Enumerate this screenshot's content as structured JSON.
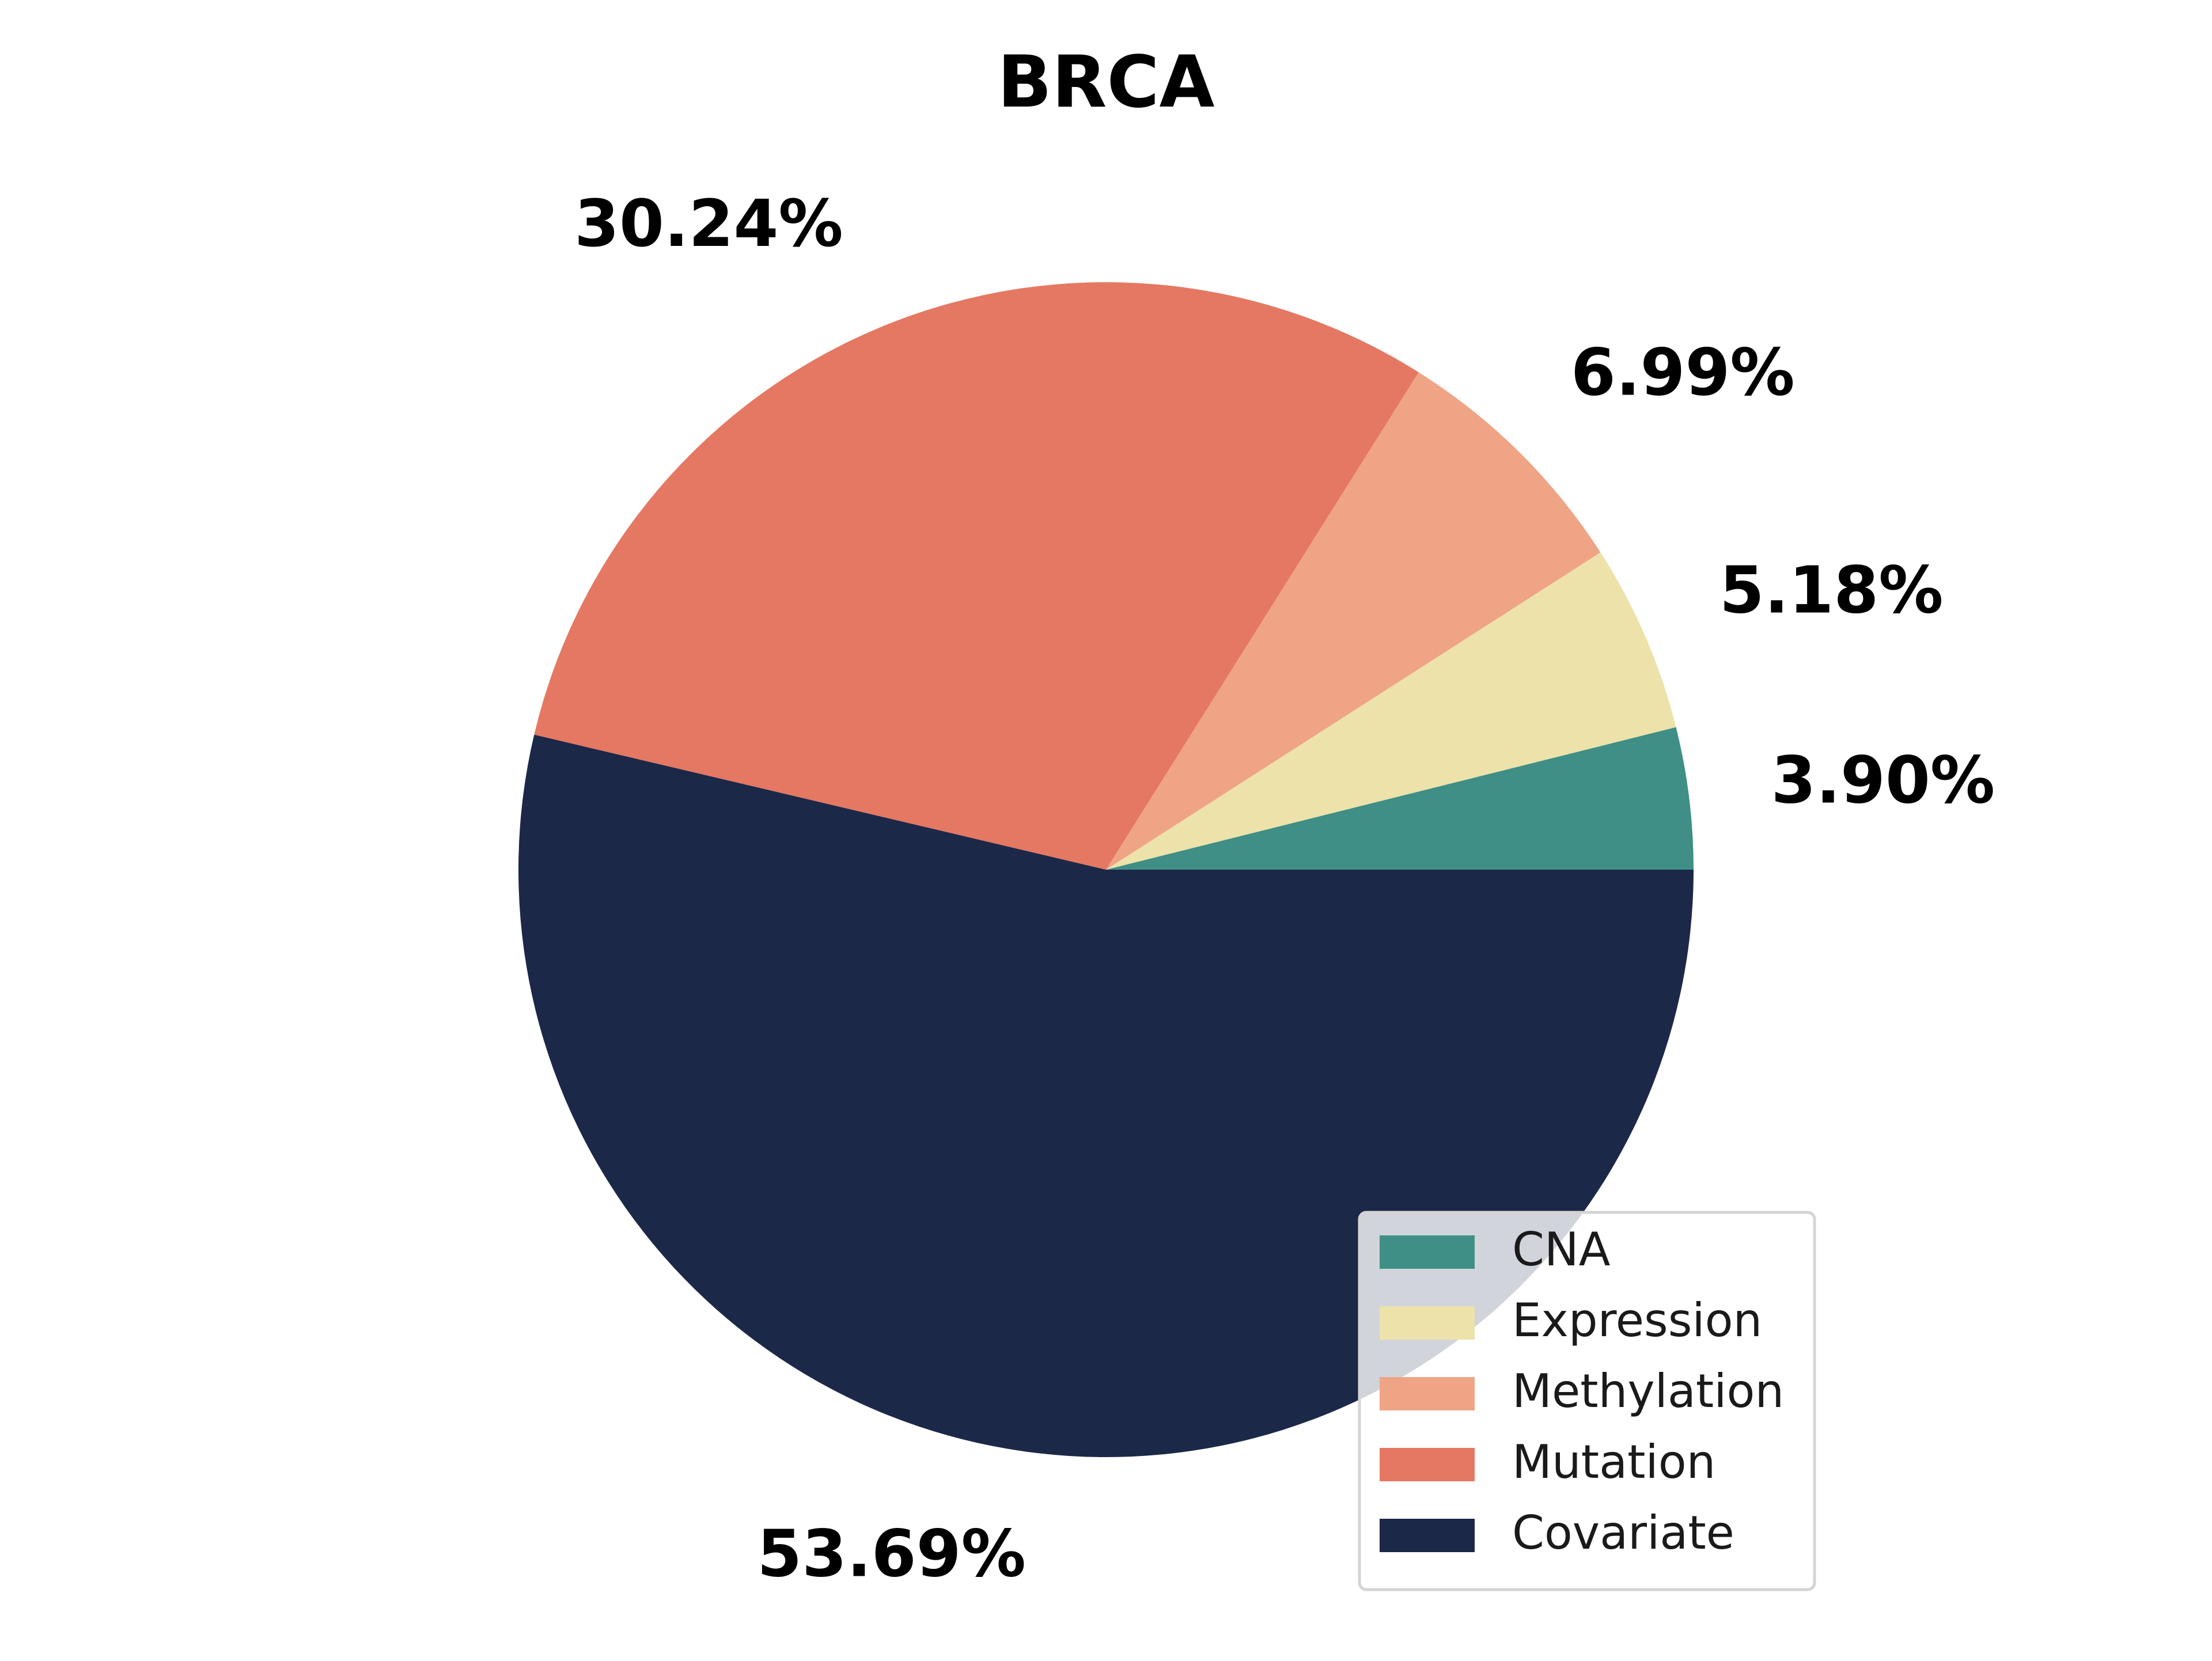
{
  "chart_data": {
    "type": "pie",
    "title": "BRCA",
    "slices": [
      {
        "label": "CNA",
        "value": 3.9,
        "value_label": "3.90%",
        "color": "#3f8f86"
      },
      {
        "label": "Expression",
        "value": 5.18,
        "value_label": "5.18%",
        "color": "#ece2aa"
      },
      {
        "label": "Methylation",
        "value": 6.99,
        "value_label": "6.99%",
        "color": "#efa486"
      },
      {
        "label": "Mutation",
        "value": 30.24,
        "value_label": "30.24%",
        "color": "#e57863"
      },
      {
        "label": "Covariate",
        "value": 53.69,
        "value_label": "53.69%",
        "color": "#1c2848"
      }
    ],
    "start_angle_deg": 0,
    "direction": "counterclockwise",
    "legend_position": "lower-right"
  }
}
